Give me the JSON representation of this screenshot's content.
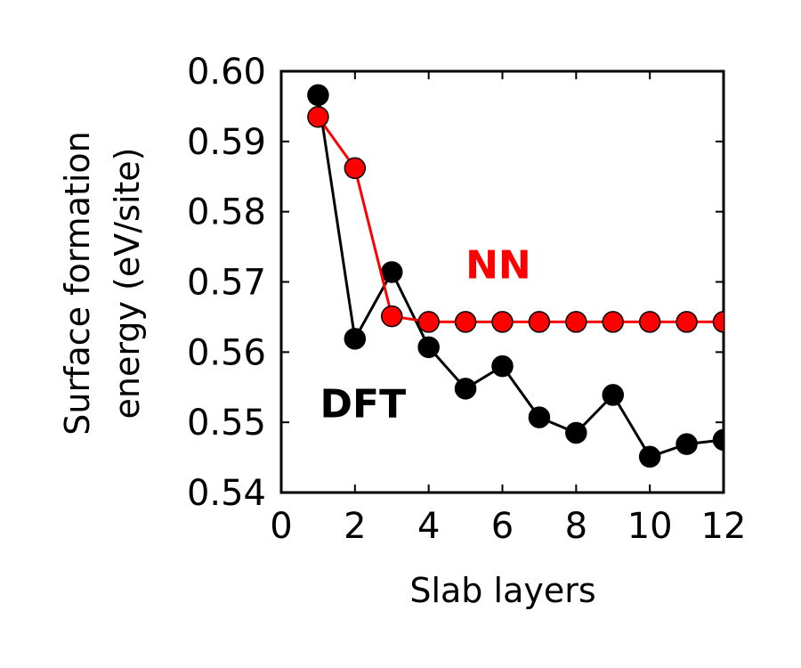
{
  "chart_data": {
    "type": "line",
    "title": "",
    "xlabel": "Slab layers",
    "ylabel_line1": "Surface formation",
    "ylabel_line2": "energy (eV/site)",
    "xlim": [
      0,
      12
    ],
    "ylim": [
      0.54,
      0.6
    ],
    "x_ticks": [
      0,
      2,
      4,
      6,
      8,
      10,
      12
    ],
    "x_tick_labels": [
      "0",
      "2",
      "4",
      "6",
      "8",
      "10",
      "12"
    ],
    "y_ticks": [
      0.54,
      0.55,
      0.56,
      0.57,
      0.58,
      0.59,
      0.6
    ],
    "y_tick_labels": [
      "0.54",
      "0.55",
      "0.56",
      "0.57",
      "0.58",
      "0.59",
      "0.60"
    ],
    "grid": false,
    "series": [
      {
        "name": "DFT",
        "color": "#000000",
        "x": [
          1,
          2,
          3,
          4,
          5,
          6,
          7,
          8,
          9,
          10,
          11,
          12
        ],
        "y": [
          0.5966,
          0.5619,
          0.5714,
          0.5607,
          0.5548,
          0.558,
          0.5507,
          0.5485,
          0.5539,
          0.5451,
          0.5469,
          0.5475
        ]
      },
      {
        "name": "NN",
        "color": "#ff0000",
        "x": [
          1,
          2,
          3,
          4,
          5,
          6,
          7,
          8,
          9,
          10,
          11,
          12
        ],
        "y": [
          0.5935,
          0.5862,
          0.5651,
          0.5643,
          0.5643,
          0.5643,
          0.5643,
          0.5643,
          0.5643,
          0.5643,
          0.5643,
          0.5643
        ]
      }
    ],
    "annotations": [
      {
        "text": "NN",
        "color": "#ff0000",
        "x": 5.0,
        "y": 0.5705
      },
      {
        "text": "DFT",
        "color": "#000000",
        "x": 1.05,
        "y": 0.5507
      }
    ]
  }
}
